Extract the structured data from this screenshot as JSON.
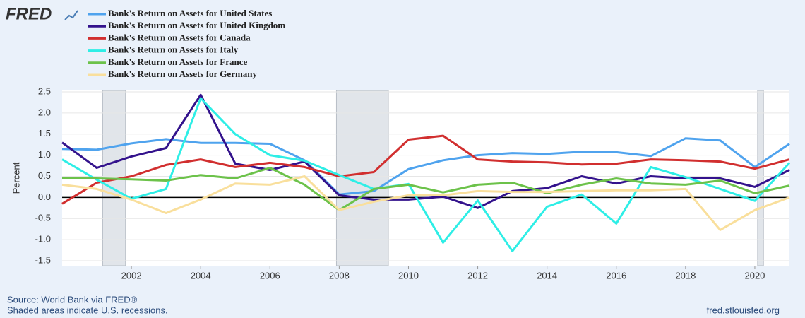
{
  "chart_data": {
    "type": "line",
    "logo": "FRED",
    "y_label": "Percent",
    "source": "Source: World Bank via FRED®",
    "note": "Shaded areas indicate U.S. recessions.",
    "credit": "fred.stlouisfed.org",
    "x": [
      2000,
      2001,
      2002,
      2003,
      2004,
      2005,
      2006,
      2007,
      2008,
      2009,
      2010,
      2011,
      2012,
      2013,
      2014,
      2015,
      2016,
      2017,
      2018,
      2019,
      2020,
      2021
    ],
    "xlim": [
      2000,
      2021
    ],
    "xticks": [
      2002,
      2004,
      2006,
      2008,
      2010,
      2012,
      2014,
      2016,
      2018,
      2020
    ],
    "ylim": [
      -1.5,
      2.5
    ],
    "yticks": [
      -1.5,
      {
        "value": -1,
        "label": "-1.0"
      },
      -0.5,
      {
        "value": 0,
        "label": "0.0"
      },
      0.5,
      {
        "value": 1,
        "label": "1.0"
      },
      1.5,
      {
        "value": 2,
        "label": "2.0"
      },
      2.5
    ],
    "grid": true,
    "recessions": [
      [
        2001.17,
        2001.83
      ],
      [
        2007.92,
        2009.42
      ],
      [
        2020.08,
        2020.25
      ]
    ],
    "series": [
      {
        "name": "Bank's Return on Assets for United States",
        "color": "#4fa3ee",
        "values": [
          1.15,
          1.13,
          1.28,
          1.38,
          1.29,
          1.29,
          1.27,
          0.88,
          0.07,
          0.15,
          0.67,
          0.88,
          1.0,
          1.05,
          1.03,
          1.08,
          1.07,
          0.98,
          1.4,
          1.35,
          0.72,
          1.27
        ]
      },
      {
        "name": "Bank's Return on Assets for United Kingdom",
        "color": "#33128c",
        "values": [
          1.3,
          0.7,
          0.97,
          1.17,
          2.43,
          0.8,
          0.65,
          0.85,
          0.05,
          -0.05,
          -0.05,
          0.02,
          -0.25,
          0.15,
          0.22,
          0.5,
          0.33,
          0.5,
          0.45,
          0.45,
          0.25,
          0.65
        ]
      },
      {
        "name": "Bank's Return on Assets for Canada",
        "color": "#d12f2f",
        "values": [
          -0.15,
          0.35,
          0.5,
          0.77,
          0.9,
          0.72,
          0.82,
          0.72,
          0.5,
          0.6,
          1.37,
          1.46,
          0.9,
          0.85,
          0.83,
          0.78,
          0.8,
          0.9,
          0.88,
          0.85,
          0.68,
          0.9
        ]
      },
      {
        "name": "Bank's Return on Assets for Italy",
        "color": "#2eeee6",
        "values": [
          0.9,
          0.42,
          -0.03,
          0.2,
          2.35,
          1.5,
          1.0,
          0.87,
          0.53,
          0.2,
          0.32,
          -1.07,
          -0.07,
          -1.27,
          -0.22,
          0.07,
          -0.62,
          0.72,
          0.48,
          0.2,
          -0.08,
          0.82
        ]
      },
      {
        "name": "Bank's Return on Assets for France",
        "color": "#6cc24a",
        "values": [
          0.45,
          0.45,
          0.43,
          0.4,
          0.53,
          0.45,
          0.7,
          0.3,
          -0.3,
          0.2,
          0.3,
          0.12,
          0.3,
          0.35,
          0.1,
          0.3,
          0.45,
          0.33,
          0.3,
          0.4,
          0.1,
          0.28
        ]
      },
      {
        "name": "Bank's Return on Assets for Germany",
        "color": "#f9df9c",
        "values": [
          0.3,
          0.2,
          -0.05,
          -0.37,
          -0.05,
          0.33,
          0.3,
          0.5,
          -0.3,
          -0.1,
          0.05,
          0.05,
          0.15,
          0.13,
          0.13,
          0.15,
          0.17,
          0.17,
          0.2,
          -0.77,
          -0.3,
          0.0
        ]
      }
    ]
  }
}
